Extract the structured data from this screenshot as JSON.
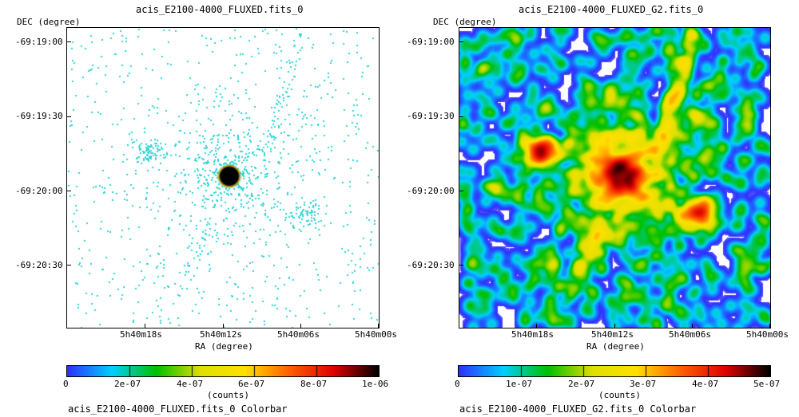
{
  "chart_data": [
    {
      "type": "heatmap",
      "title": "acis_E2100-4000_FLUXED.fits_0",
      "xlabel": "RA (degree)",
      "ylabel": "DEC (degree)",
      "x_ticks": [
        "5h40m18s",
        "5h40m12s",
        "5h40m06s",
        "5h40m00s"
      ],
      "y_ticks": [
        "-69:19:00",
        "-69:19:30",
        "-69:20:00",
        "-69:20:30"
      ],
      "colorbar": {
        "label": "(counts)",
        "caption": "acis_E2100-4000_FLUXED.fits_0 Colorbar",
        "ticks": [
          "0",
          "2e-07",
          "4e-07",
          "6e-07",
          "8e-07",
          "1e-06"
        ],
        "range": [
          0,
          1e-06
        ]
      },
      "smoothed": false
    },
    {
      "type": "heatmap",
      "title": "acis_E2100-4000_FLUXED_G2.fits_0",
      "xlabel": "RA (degree)",
      "ylabel": "DEC (degree)",
      "x_ticks": [
        "5h40m18s",
        "5h40m12s",
        "5h40m06s",
        "5h40m00s"
      ],
      "y_ticks": [
        "-69:19:00",
        "-69:19:30",
        "-69:20:00",
        "-69:20:30"
      ],
      "colorbar": {
        "label": "(counts)",
        "caption": "acis_E2100-4000_FLUXED_G2.fits_0 Colorbar",
        "ticks": [
          "0",
          "1e-07",
          "2e-07",
          "3e-07",
          "4e-07",
          "5e-07"
        ],
        "range": [
          0,
          5e-07
        ]
      },
      "smoothed": true
    }
  ],
  "colors": {
    "colormap": [
      "#ffffff",
      "#3030ff",
      "#00d0ff",
      "#00c000",
      "#e0e000",
      "#ffe000",
      "#ff6000",
      "#e00000",
      "#000000"
    ],
    "dot_color": "#29d3d6"
  }
}
